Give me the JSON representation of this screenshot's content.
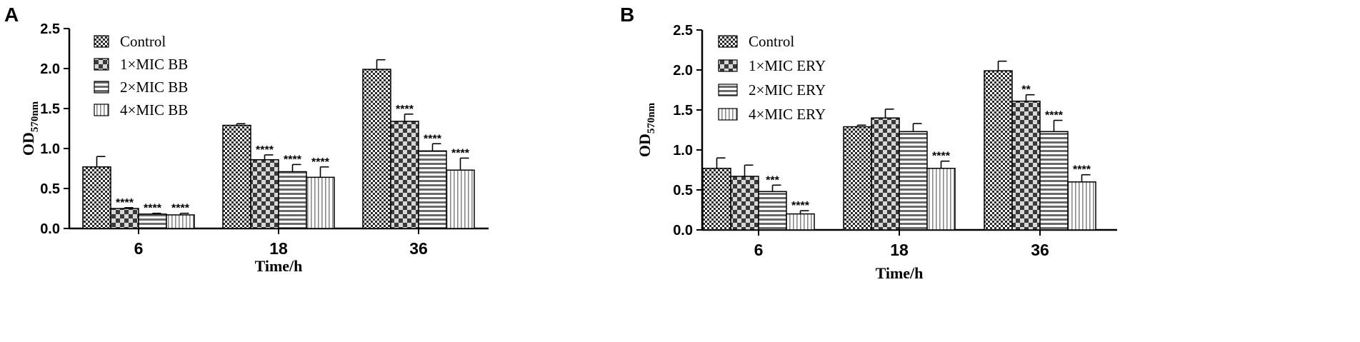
{
  "chart_data": [
    {
      "panel_label": "A",
      "type": "bar",
      "xlabel": "Time/h",
      "ylabel_main": "OD",
      "ylabel_sub": "570nm",
      "ylim": [
        0,
        2.5
      ],
      "yticks": [
        "0.0",
        "0.5",
        "1.0",
        "1.5",
        "2.0",
        "2.5"
      ],
      "categories": [
        "6",
        "18",
        "36"
      ],
      "legend_position": "top-left",
      "series": [
        {
          "name": "Control",
          "pattern": "checker-fine",
          "values": [
            0.77,
            1.29,
            1.99
          ],
          "errors": [
            0.13,
            0.02,
            0.12
          ],
          "sig": [
            "",
            "",
            ""
          ]
        },
        {
          "name": "1×MIC BB",
          "pattern": "checker-coarse",
          "values": [
            0.25,
            0.86,
            1.34
          ],
          "errors": [
            0.01,
            0.06,
            0.09
          ],
          "sig": [
            "****",
            "****",
            "****"
          ]
        },
        {
          "name": "2×MIC BB",
          "pattern": "horizontal",
          "values": [
            0.18,
            0.71,
            0.97
          ],
          "errors": [
            0.01,
            0.09,
            0.09
          ],
          "sig": [
            "****",
            "****",
            "****"
          ]
        },
        {
          "name": "4×MIC BB",
          "pattern": "vertical",
          "values": [
            0.17,
            0.64,
            0.73
          ],
          "errors": [
            0.02,
            0.13,
            0.15
          ],
          "sig": [
            "****",
            "****",
            "****"
          ]
        }
      ]
    },
    {
      "panel_label": "B",
      "type": "bar",
      "xlabel": "Time/h",
      "ylabel_main": "OD",
      "ylabel_sub": "570nm",
      "ylim": [
        0,
        2.5
      ],
      "yticks": [
        "0.0",
        "0.5",
        "1.0",
        "1.5",
        "2.0",
        "2.5"
      ],
      "categories": [
        "6",
        "18",
        "36"
      ],
      "legend_position": "top-left",
      "series": [
        {
          "name": "Control",
          "pattern": "checker-fine",
          "values": [
            0.77,
            1.29,
            1.99
          ],
          "errors": [
            0.13,
            0.02,
            0.12
          ],
          "sig": [
            "",
            "",
            ""
          ]
        },
        {
          "name": "1×MIC ERY",
          "pattern": "checker-coarse",
          "values": [
            0.67,
            1.4,
            1.61
          ],
          "errors": [
            0.14,
            0.11,
            0.08
          ],
          "sig": [
            "",
            "",
            "**"
          ]
        },
        {
          "name": "2×MIC ERY",
          "pattern": "horizontal",
          "values": [
            0.48,
            1.23,
            1.23
          ],
          "errors": [
            0.08,
            0.1,
            0.14
          ],
          "sig": [
            "***",
            "",
            "****"
          ]
        },
        {
          "name": "4×MIC ERY",
          "pattern": "vertical",
          "values": [
            0.2,
            0.77,
            0.6
          ],
          "errors": [
            0.04,
            0.09,
            0.09
          ],
          "sig": [
            "****",
            "****",
            "****"
          ]
        }
      ]
    }
  ]
}
